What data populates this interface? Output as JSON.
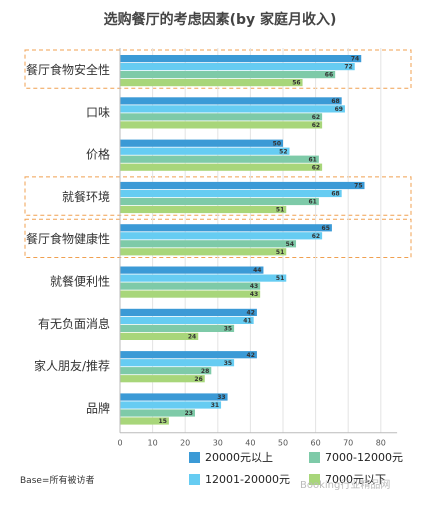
{
  "chart_data": {
    "type": "bar",
    "orientation": "horizontal",
    "title": "选购餐厅的考虑因素(by 家庭月收入)",
    "categories": [
      "餐厅食物安全性",
      "口味",
      "价格",
      "就餐环境",
      "餐厅食物健康性",
      "就餐便利性",
      "有无负面消息",
      "家人朋友/推荐",
      "品牌"
    ],
    "highlighted_categories": [
      "餐厅食物安全性",
      "就餐环境",
      "餐厅食物健康性"
    ],
    "series": [
      {
        "name": "20000元以上",
        "color": "#3b9ad6",
        "values": [
          74,
          68,
          50,
          75,
          65,
          44,
          42,
          42,
          33
        ]
      },
      {
        "name": "12001-20000元",
        "color": "#66ccf2",
        "values": [
          72,
          69,
          52,
          68,
          62,
          51,
          41,
          35,
          31
        ]
      },
      {
        "name": "7000-12000元",
        "color": "#7ecaa8",
        "values": [
          66,
          62,
          61,
          61,
          54,
          43,
          35,
          28,
          23
        ]
      },
      {
        "name": "7000元以下",
        "color": "#a8d67a",
        "values": [
          56,
          62,
          62,
          51,
          51,
          43,
          24,
          26,
          15
        ]
      }
    ],
    "xlim": [
      0,
      85
    ],
    "xticks": [
      "0",
      "10",
      "20",
      "30",
      "40",
      "50",
      "60",
      "70",
      "80"
    ],
    "legend_position": "bottom",
    "highlight_color": "#f0a050"
  },
  "footnote": "Base=所有被访者",
  "watermark": "Booking行业精品网"
}
